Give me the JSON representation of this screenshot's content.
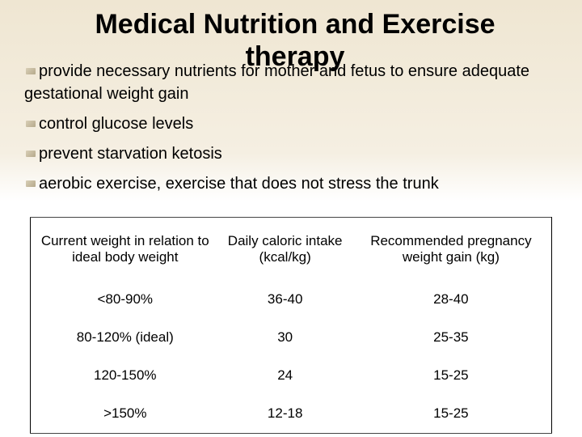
{
  "title": "Medical Nutrition and Exercise therapy",
  "bullets": [
    "provide necessary nutrients for mother and fetus to ensure adequate gestational weight gain",
    "control glucose levels",
    "prevent starvation ketosis",
    "aerobic exercise, exercise that does not stress the trunk"
  ],
  "table": {
    "header": [
      "Current weight in relation to ideal body weight",
      "Daily caloric intake (kcal/kg)",
      "Recommended pregnancy weight gain (kg)"
    ],
    "rows": [
      [
        "<80-90%",
        "36-40",
        "28-40"
      ],
      [
        "80-120% (ideal)",
        "30",
        "25-35"
      ],
      [
        "120-150%",
        "24",
        "15-25"
      ],
      [
        ">150%",
        "12-18",
        "15-25"
      ]
    ]
  }
}
